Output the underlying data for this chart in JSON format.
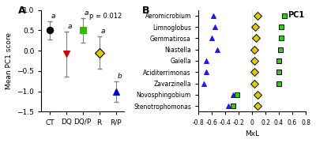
{
  "panel_A": {
    "categories": [
      "CT",
      "DQ",
      "DQ/P",
      "R",
      "R/P"
    ],
    "means": [
      0.5,
      -0.08,
      0.5,
      -0.05,
      -1.0
    ],
    "errors": [
      0.22,
      0.55,
      0.3,
      0.4,
      0.25
    ],
    "colors": [
      "black",
      "#cc0000",
      "#33bb00",
      "#ddcc00",
      "#0000cc"
    ],
    "markers": [
      "o",
      "v",
      "s",
      "D",
      "^"
    ],
    "mfc": [
      "black",
      "#cc0000",
      "#33bb00",
      "#ddcc00",
      "#0000cc"
    ],
    "mec": [
      "black",
      "#cc0000",
      "#33bb00",
      "black",
      "#0000cc"
    ],
    "letters": [
      "a",
      "a",
      "a",
      "a",
      "b"
    ],
    "pvalue": "p = 0.012",
    "ylabel": "Mean PC1 score",
    "ylim": [
      -1.5,
      1.0
    ]
  },
  "panel_B": {
    "taxa": [
      "Aeromicrobium",
      "Limnoglobus",
      "Gemmatirosa",
      "Niastella",
      "Gaiella",
      "Aciditerrimonas",
      "Zavarzinella",
      "Novosphingobium",
      "Stenotrophomonas"
    ],
    "xlabel": "MxL",
    "title": "PC1",
    "xlim": [
      -0.8,
      0.8
    ],
    "xticks": [
      -0.8,
      -0.6,
      -0.4,
      -0.2,
      0.0,
      0.2,
      0.4,
      0.6,
      0.8
    ],
    "xticklabels": [
      "-0.8",
      "-0.6",
      "-0.4",
      "-0.2",
      "0",
      "0.2",
      "0.4",
      "0.6",
      "0.8"
    ],
    "series": [
      {
        "name": "DQ",
        "marker": "^",
        "mfc": "#1a1aee",
        "mec": "#1a1aee",
        "values": [
          -0.58,
          -0.55,
          -0.6,
          -0.52,
          -0.68,
          -0.68,
          -0.72,
          -0.28,
          -0.35
        ]
      },
      {
        "name": "R",
        "marker": "D",
        "mfc": "#ddcc00",
        "mec": "black",
        "values": [
          0.08,
          0.05,
          0.06,
          0.04,
          0.04,
          0.04,
          0.03,
          0.08,
          0.08
        ]
      },
      {
        "name": "DQ/P",
        "marker": "s",
        "mfc": "#33cc00",
        "mec": "black",
        "values": [
          0.48,
          0.44,
          0.44,
          0.42,
          0.4,
          0.4,
          0.4,
          -0.22,
          -0.28
        ]
      }
    ]
  }
}
